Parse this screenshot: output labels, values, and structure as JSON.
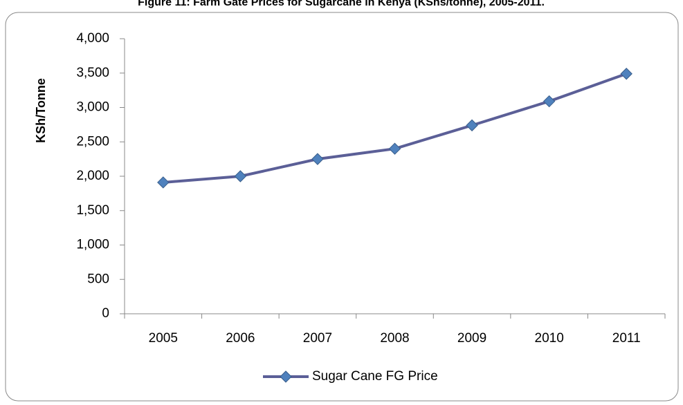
{
  "chart_data": {
    "type": "line",
    "title": "Figure 11: Farm Gate Prices for Sugarcane in Kenya (KShs/tonne), 2005-2011.",
    "y_label": "KSh/Tonne",
    "categories": [
      "2005",
      "2006",
      "2007",
      "2008",
      "2009",
      "2010",
      "2011"
    ],
    "series": [
      {
        "name": "Sugar Cane FG Price",
        "color": "#5b5f97",
        "marker_color": "#4f81bd",
        "values": [
          1910,
          2000,
          2250,
          2400,
          2740,
          3090,
          3490
        ]
      }
    ],
    "ylim": [
      0,
      4000
    ],
    "yticks": [
      0,
      500,
      {
        "value": 1000,
        "label": "1,000"
      },
      {
        "value": 1500,
        "label": "1,500"
      },
      {
        "value": 2000,
        "label": "2,000"
      },
      {
        "value": 2500,
        "label": "2,500"
      },
      {
        "value": 3000,
        "label": "3,000"
      },
      {
        "value": 3500,
        "label": "3,500"
      },
      {
        "value": 4000,
        "label": "4,000"
      }
    ],
    "legend": "bottom"
  }
}
